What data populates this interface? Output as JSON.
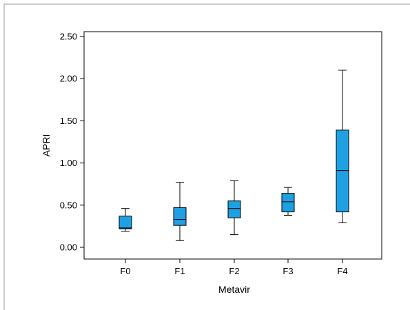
{
  "chart_data": {
    "type": "boxplot",
    "xlabel": "Metavir",
    "ylabel": "APRI",
    "ylim": [
      0.0,
      2.5
    ],
    "yticks": [
      "0.00",
      "0.50",
      "1.00",
      "1.50",
      "2.00",
      "2.50"
    ],
    "categories": [
      "F0",
      "F1",
      "F2",
      "F3",
      "F4"
    ],
    "boxes": [
      {
        "category": "F0",
        "min": 0.19,
        "q1": 0.22,
        "median": 0.23,
        "q3": 0.37,
        "max": 0.46
      },
      {
        "category": "F1",
        "min": 0.08,
        "q1": 0.26,
        "median": 0.33,
        "q3": 0.47,
        "max": 0.77
      },
      {
        "category": "F2",
        "min": 0.15,
        "q1": 0.35,
        "median": 0.46,
        "q3": 0.55,
        "max": 0.79
      },
      {
        "category": "F3",
        "min": 0.38,
        "q1": 0.42,
        "median": 0.54,
        "q3": 0.64,
        "max": 0.71
      },
      {
        "category": "F4",
        "min": 0.29,
        "q1": 0.42,
        "median": 0.91,
        "q3": 1.39,
        "max": 2.1
      }
    ],
    "colors": {
      "box_fill": "#1ea0e2",
      "stroke": "#000000"
    },
    "grid": false,
    "legend": "none"
  }
}
